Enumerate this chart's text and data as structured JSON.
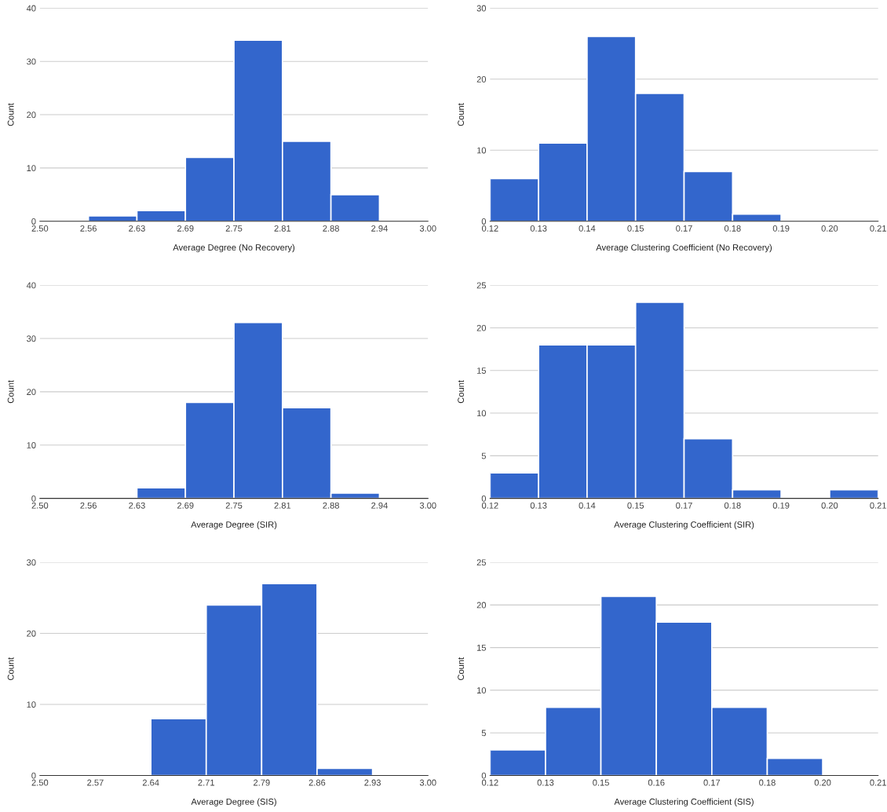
{
  "chart_data": [
    {
      "type": "histogram",
      "xlabel": "Average Degree (No Recovery)",
      "ylabel": "Count",
      "color": "#3366cc",
      "grid": "y",
      "bins": [
        2.5,
        2.5625,
        2.625,
        2.6875,
        2.75,
        2.8125,
        2.875,
        2.9375,
        3.0
      ],
      "values": [
        0,
        1,
        2,
        12,
        34,
        15,
        5,
        0
      ],
      "xlim": [
        2.5,
        3.0
      ],
      "xticks": [
        {
          "value": 2.5,
          "label": "2.50"
        },
        {
          "value": 2.5625,
          "label": "2.56"
        },
        {
          "value": 2.625,
          "label": "2.63"
        },
        {
          "value": 2.6875,
          "label": "2.69"
        },
        {
          "value": 2.75,
          "label": "2.75"
        },
        {
          "value": 2.8125,
          "label": "2.81"
        },
        {
          "value": 2.875,
          "label": "2.88"
        },
        {
          "value": 2.9375,
          "label": "2.94"
        },
        {
          "value": 3.0,
          "label": "3.00"
        }
      ],
      "ylim": [
        0,
        40
      ],
      "yticks": [
        0,
        10,
        20,
        30,
        40
      ]
    },
    {
      "type": "histogram",
      "xlabel": "Average Clustering Coefficient (No Recovery)",
      "ylabel": "Count",
      "color": "#3366cc",
      "grid": "y",
      "bins": [
        0.12,
        0.13125,
        0.1425,
        0.15375,
        0.165,
        0.17625,
        0.1875,
        0.19875,
        0.21
      ],
      "values": [
        6,
        11,
        26,
        18,
        7,
        1,
        0,
        0
      ],
      "xlim": [
        0.12,
        0.21
      ],
      "xticks": [
        {
          "value": 0.12,
          "label": "0.12"
        },
        {
          "value": 0.13125,
          "label": "0.13"
        },
        {
          "value": 0.1425,
          "label": "0.14"
        },
        {
          "value": 0.15375,
          "label": "0.15"
        },
        {
          "value": 0.165,
          "label": "0.17"
        },
        {
          "value": 0.17625,
          "label": "0.18"
        },
        {
          "value": 0.1875,
          "label": "0.19"
        },
        {
          "value": 0.19875,
          "label": "0.20"
        },
        {
          "value": 0.21,
          "label": "0.21"
        }
      ],
      "ylim": [
        0,
        30
      ],
      "yticks": [
        0,
        10,
        20,
        30
      ]
    },
    {
      "type": "histogram",
      "xlabel": "Average Degree (SIR)",
      "ylabel": "Count",
      "color": "#3366cc",
      "grid": "y",
      "bins": [
        2.5,
        2.5625,
        2.625,
        2.6875,
        2.75,
        2.8125,
        2.875,
        2.9375,
        3.0
      ],
      "values": [
        0,
        0,
        2,
        18,
        33,
        17,
        1,
        0
      ],
      "xlim": [
        2.5,
        3.0
      ],
      "xticks": [
        {
          "value": 2.5,
          "label": "2.50"
        },
        {
          "value": 2.5625,
          "label": "2.56"
        },
        {
          "value": 2.625,
          "label": "2.63"
        },
        {
          "value": 2.6875,
          "label": "2.69"
        },
        {
          "value": 2.75,
          "label": "2.75"
        },
        {
          "value": 2.8125,
          "label": "2.81"
        },
        {
          "value": 2.875,
          "label": "2.88"
        },
        {
          "value": 2.9375,
          "label": "2.94"
        },
        {
          "value": 3.0,
          "label": "3.00"
        }
      ],
      "ylim": [
        0,
        40
      ],
      "yticks": [
        0,
        10,
        20,
        30,
        40
      ]
    },
    {
      "type": "histogram",
      "xlabel": "Average Clustering Coefficient (SIR)",
      "ylabel": "Count",
      "color": "#3366cc",
      "grid": "y",
      "bins": [
        0.12,
        0.13125,
        0.1425,
        0.15375,
        0.165,
        0.17625,
        0.1875,
        0.19875,
        0.21
      ],
      "values": [
        3,
        18,
        18,
        23,
        7,
        1,
        0,
        1
      ],
      "xlim": [
        0.12,
        0.21
      ],
      "xticks": [
        {
          "value": 0.12,
          "label": "0.12"
        },
        {
          "value": 0.13125,
          "label": "0.13"
        },
        {
          "value": 0.1425,
          "label": "0.14"
        },
        {
          "value": 0.15375,
          "label": "0.15"
        },
        {
          "value": 0.165,
          "label": "0.17"
        },
        {
          "value": 0.17625,
          "label": "0.18"
        },
        {
          "value": 0.1875,
          "label": "0.19"
        },
        {
          "value": 0.19875,
          "label": "0.20"
        },
        {
          "value": 0.21,
          "label": "0.21"
        }
      ],
      "ylim": [
        0,
        25
      ],
      "yticks": [
        0,
        5,
        10,
        15,
        20,
        25
      ]
    },
    {
      "type": "histogram",
      "xlabel": "Average Degree (SIS)",
      "ylabel": "Count",
      "color": "#3366cc",
      "grid": "y",
      "bins": [
        2.5,
        2.5714,
        2.6429,
        2.7143,
        2.7857,
        2.8571,
        2.9286,
        3.0
      ],
      "values": [
        0,
        0,
        8,
        24,
        27,
        1,
        0
      ],
      "xlim": [
        2.5,
        3.0
      ],
      "xticks": [
        {
          "value": 2.5,
          "label": "2.50"
        },
        {
          "value": 2.5714,
          "label": "2.57"
        },
        {
          "value": 2.6429,
          "label": "2.64"
        },
        {
          "value": 2.7143,
          "label": "2.71"
        },
        {
          "value": 2.7857,
          "label": "2.79"
        },
        {
          "value": 2.8571,
          "label": "2.86"
        },
        {
          "value": 2.9286,
          "label": "2.93"
        },
        {
          "value": 3.0,
          "label": "3.00"
        }
      ],
      "ylim": [
        0,
        30
      ],
      "yticks": [
        0,
        10,
        20,
        30
      ]
    },
    {
      "type": "histogram",
      "xlabel": "Average Clustering Coefficient (SIS)",
      "ylabel": "Count",
      "color": "#3366cc",
      "grid": "y",
      "bins": [
        0.12,
        0.13286,
        0.14571,
        0.15857,
        0.17143,
        0.18429,
        0.19714,
        0.21
      ],
      "values": [
        3,
        8,
        21,
        18,
        8,
        2,
        0
      ],
      "xlim": [
        0.12,
        0.21
      ],
      "xticks": [
        {
          "value": 0.12,
          "label": "0.12"
        },
        {
          "value": 0.13286,
          "label": "0.13"
        },
        {
          "value": 0.14571,
          "label": "0.15"
        },
        {
          "value": 0.15857,
          "label": "0.16"
        },
        {
          "value": 0.17143,
          "label": "0.17"
        },
        {
          "value": 0.18429,
          "label": "0.18"
        },
        {
          "value": 0.19714,
          "label": "0.20"
        },
        {
          "value": 0.21,
          "label": "0.21"
        }
      ],
      "ylim": [
        0,
        25
      ],
      "yticks": [
        0,
        5,
        10,
        15,
        20,
        25
      ]
    }
  ]
}
